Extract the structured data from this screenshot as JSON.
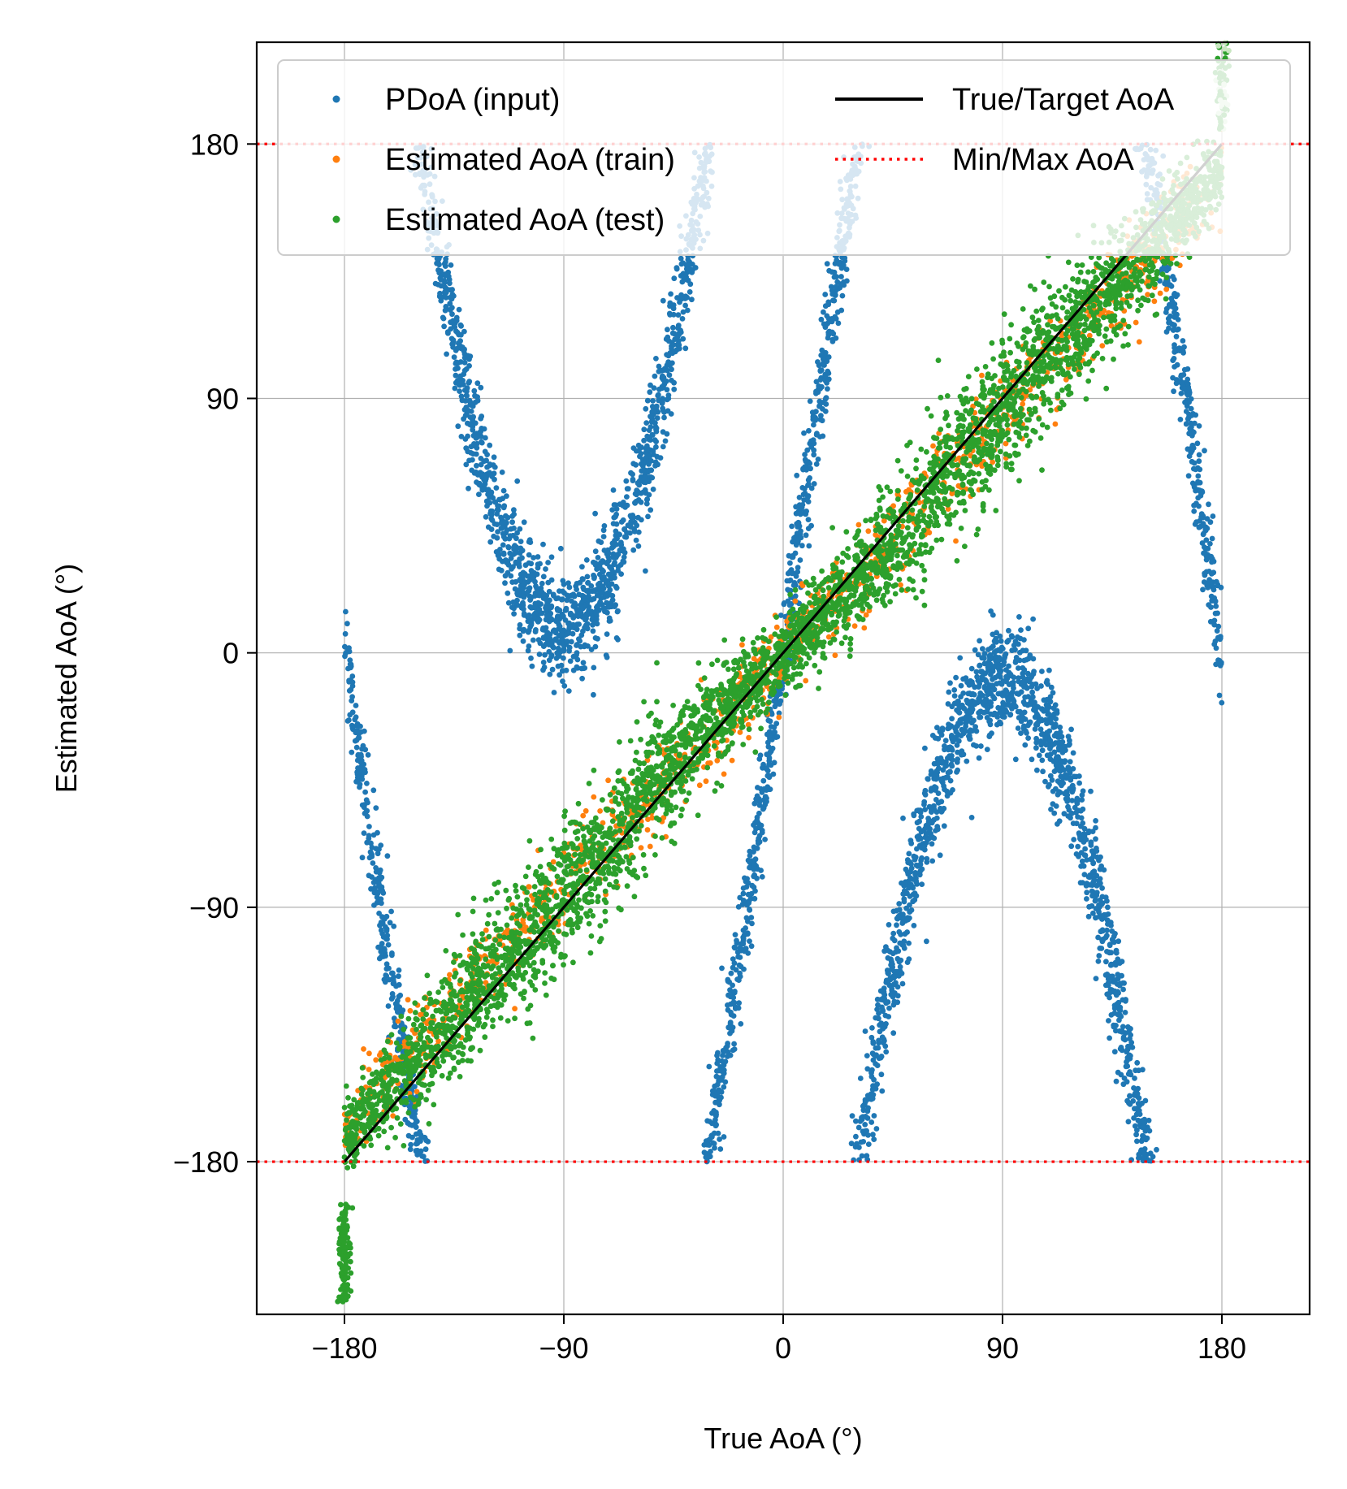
{
  "chart_data": {
    "type": "scatter",
    "title": "",
    "xlabel": "True AoA (°)",
    "ylabel": "Estimated AoA (°)",
    "xlim": [
      -216,
      216
    ],
    "ylim": [
      -234,
      216
    ],
    "xticks": [
      -180,
      -90,
      0,
      90,
      180
    ],
    "yticks": [
      -180,
      -90,
      0,
      90,
      180
    ],
    "xtick_labels": [
      "−180",
      "−90",
      "0",
      "90",
      "180"
    ],
    "ytick_labels": [
      "−180",
      "−90",
      "0",
      "90",
      "180"
    ],
    "grid": true,
    "legend_placement": "top",
    "legend_columns": 2,
    "series": [
      {
        "name": "PDoA (input)",
        "kind": "scatter",
        "color": "#1f77b4",
        "note_regions": [
          {
            "x": [
              -180,
              -60
            ],
            "y_approx": "wrapped sinusoidal bands"
          },
          {
            "x": [
              -60,
              60
            ],
            "y_approx": "steep band from -180 to 180"
          },
          {
            "x": [
              40,
              180
            ],
            "y_approx": "arch around y=-100 and descending band to 0"
          }
        ]
      },
      {
        "name": "Estimated AoA (train)",
        "kind": "scatter",
        "color": "#ff7f0e"
      },
      {
        "name": "Estimated AoA (test)",
        "kind": "scatter",
        "color": "#2ca02c"
      },
      {
        "name": "True/Target AoA",
        "kind": "line",
        "color": "#000000",
        "x": [
          -180,
          180
        ],
        "y": [
          -180,
          180
        ]
      },
      {
        "name": "Min/Max AoA",
        "kind": "hline-dotted",
        "color": "#ff0000",
        "y_values": [
          -180,
          180
        ]
      }
    ]
  }
}
